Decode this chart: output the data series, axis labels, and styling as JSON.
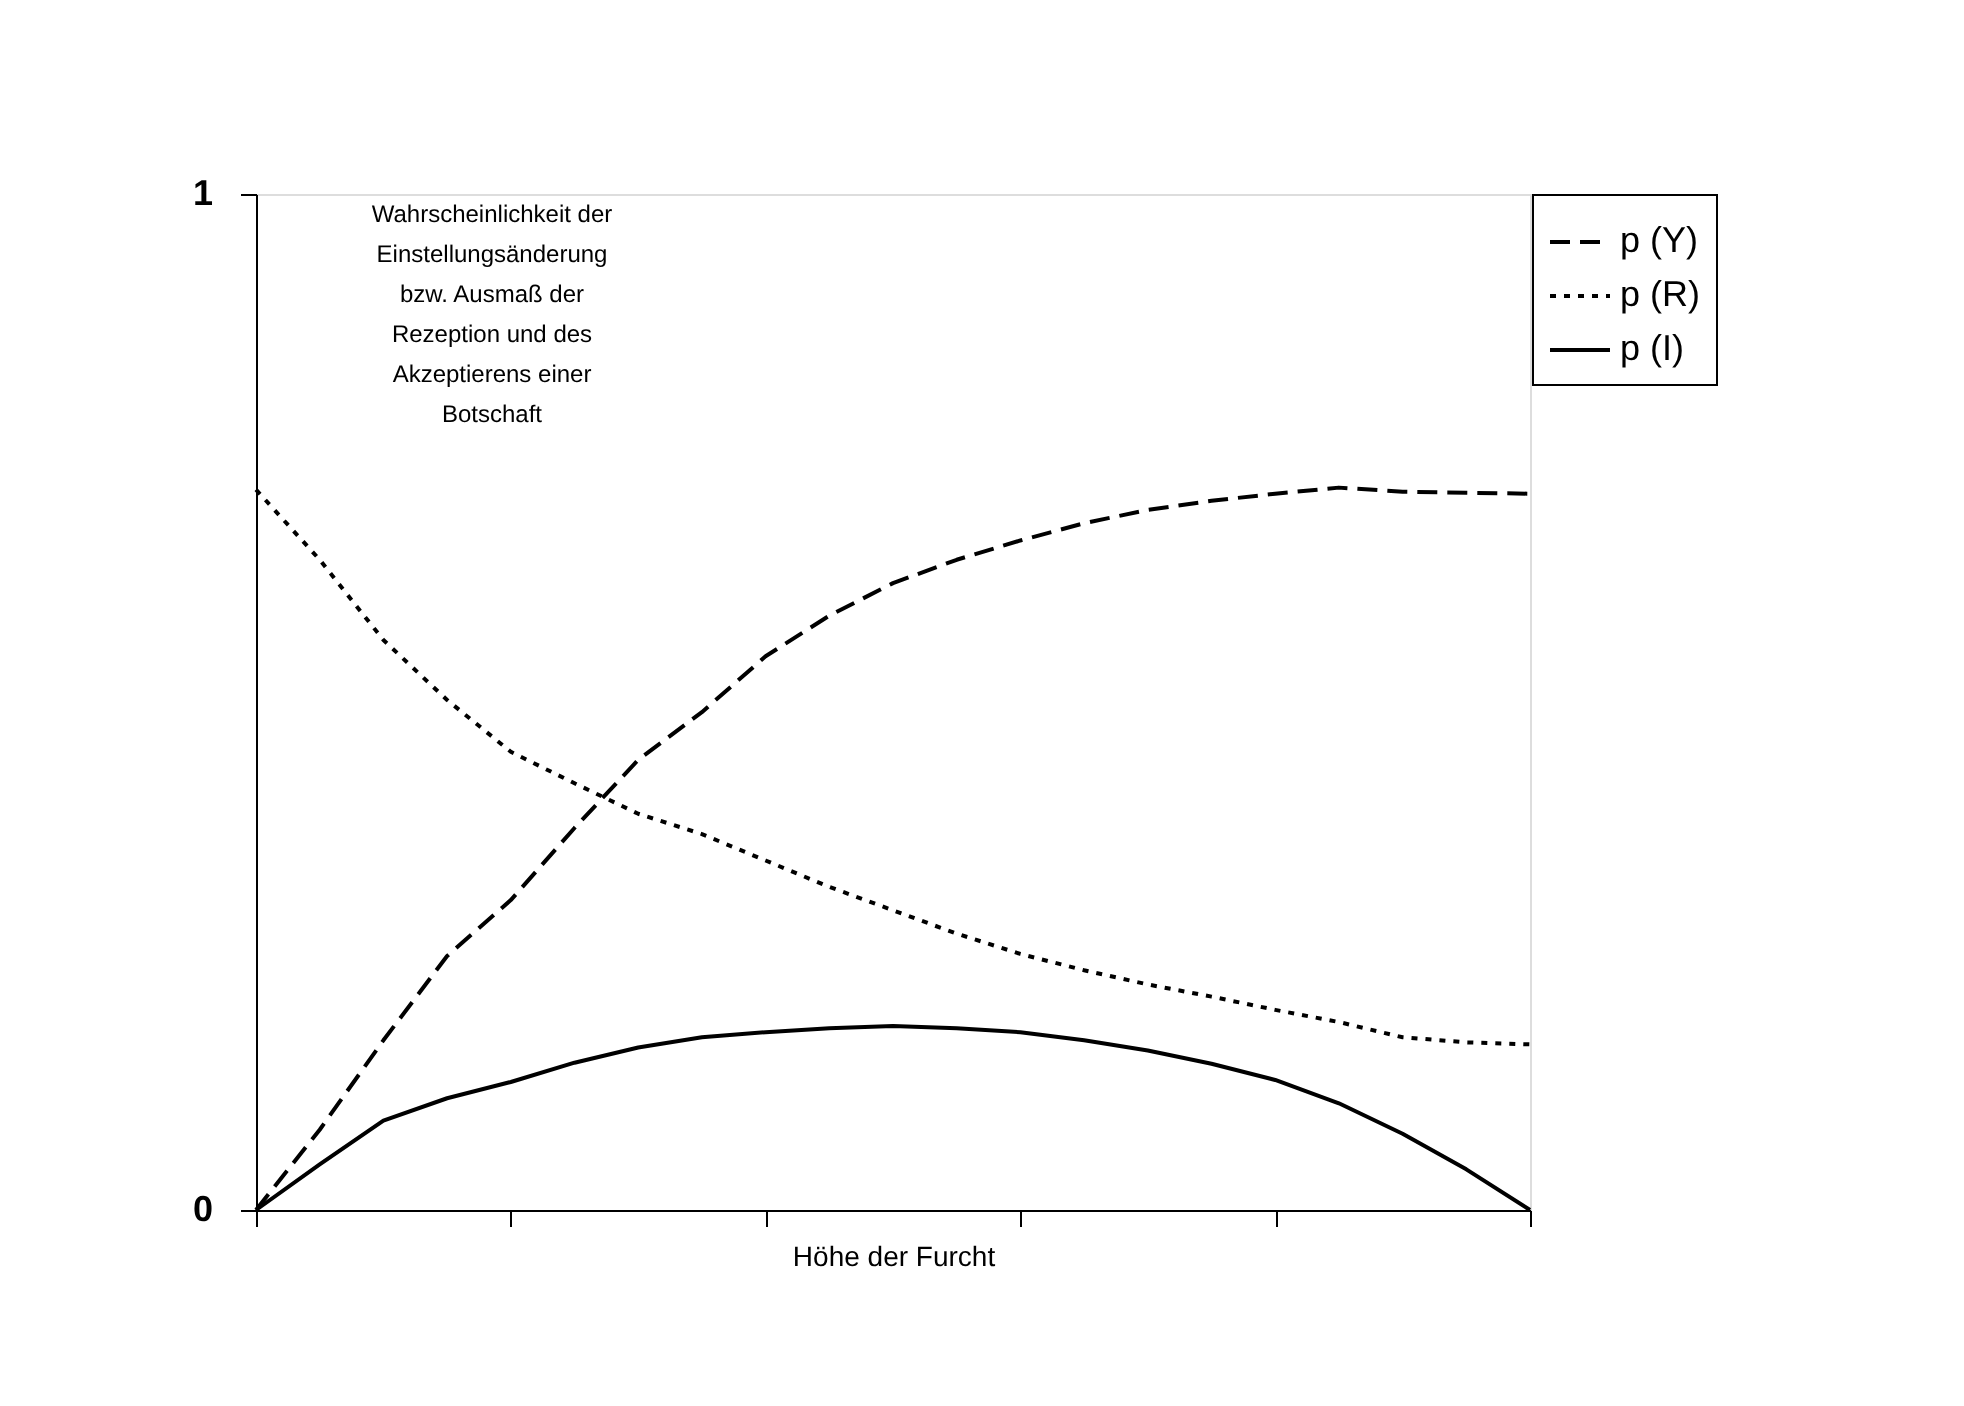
{
  "chart_data": {
    "type": "line",
    "ylabel": "Wahrscheinlichkeit der\nEinstellungsänderung\nbzw. Ausmaß der\nRezeption und des\nAkzeptierens einer\nBotschaft",
    "xlabel": "Höhe der Furcht",
    "categories": [
      null,
      null,
      null,
      null,
      null,
      null,
      null,
      null,
      null,
      null,
      null,
      null,
      null,
      null,
      null,
      null,
      null,
      null,
      null,
      null,
      null
    ],
    "ylim": [
      0,
      1
    ],
    "yticks": [
      0,
      1
    ],
    "tick_labels": "y",
    "grid": false,
    "legend": "right",
    "marker": "none",
    "series": [
      {
        "name": "p (Y)",
        "color": "#000000",
        "line_style": "dashed",
        "values": [
          0,
          0.079,
          0.167,
          0.25,
          0.305,
          0.376,
          0.443,
          0.49,
          0.545,
          0.585,
          0.617,
          0.64,
          0.659,
          0.676,
          0.689,
          0.698,
          0.705,
          0.711,
          0.707,
          0.706,
          0.705
        ]
      },
      {
        "name": "p (R)",
        "color": "#000000",
        "line_style": "dotted",
        "values": [
          0.709,
          0.64,
          0.561,
          0.502,
          0.451,
          0.42,
          0.39,
          0.37,
          0.344,
          0.318,
          0.295,
          0.272,
          0.252,
          0.236,
          0.222,
          0.21,
          0.197,
          0.185,
          0.17,
          0.165,
          0.163
        ]
      },
      {
        "name": "p (I)",
        "color": "#000000",
        "line_style": "solid",
        "values": [
          0,
          0.045,
          0.088,
          0.11,
          0.126,
          0.145,
          0.16,
          0.17,
          0.175,
          0.179,
          0.181,
          0.179,
          0.175,
          0.167,
          0.157,
          0.144,
          0.128,
          0.105,
          0.075,
          0.04,
          0
        ]
      }
    ]
  }
}
